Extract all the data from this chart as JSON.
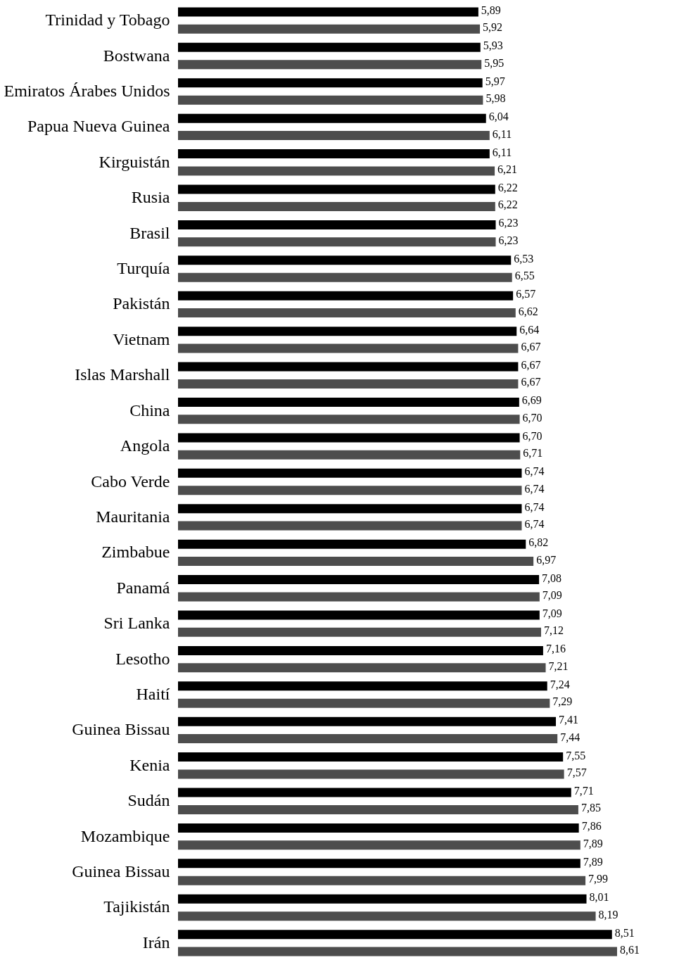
{
  "chart_data": {
    "type": "bar",
    "orientation": "horizontal",
    "categories": [
      "Trinidad y Tobago",
      "Bostwana",
      "Emiratos Árabes Unidos",
      "Papua Nueva Guinea",
      "Kirguistán",
      "Rusia",
      "Brasil",
      "Turquía",
      "Pakistán",
      "Vietnam",
      "Islas Marshall",
      "China",
      "Angola",
      "Cabo Verde",
      "Mauritania",
      "Zimbabue",
      "Panamá",
      "Sri Lanka",
      "Lesotho",
      "Haití",
      "Guinea Bissau",
      "Kenia",
      "Sudán",
      "Mozambique",
      "Guinea Bissau",
      "Tajikistán",
      "Irán"
    ],
    "series": [
      {
        "color": "#000000",
        "values": [
          5.89,
          5.93,
          5.97,
          6.04,
          6.11,
          6.22,
          6.23,
          6.53,
          6.57,
          6.64,
          6.67,
          6.69,
          6.7,
          6.74,
          6.74,
          6.82,
          7.08,
          7.09,
          7.16,
          7.24,
          7.41,
          7.55,
          7.71,
          7.86,
          7.89,
          8.01,
          8.51
        ],
        "value_labels": [
          "5,89",
          "5,93",
          "5,97",
          "6,04",
          "6,11",
          "6,22",
          "6,23",
          "6,53",
          "6,57",
          "6,64",
          "6,67",
          "6,69",
          "6,70",
          "6,74",
          "6,74",
          "6,82",
          "7,08",
          "7,09",
          "7,16",
          "7,24",
          "7,41",
          "7,55",
          "7,71",
          "7,86",
          "7,89",
          "8,01",
          "8,51"
        ]
      },
      {
        "color": "#4d4d4d",
        "values": [
          5.92,
          5.95,
          5.98,
          6.11,
          6.21,
          6.22,
          6.23,
          6.55,
          6.62,
          6.67,
          6.67,
          6.7,
          6.71,
          6.74,
          6.74,
          6.97,
          7.09,
          7.12,
          7.21,
          7.29,
          7.44,
          7.57,
          7.85,
          7.89,
          7.99,
          8.19,
          8.61
        ],
        "value_labels": [
          "5,92",
          "5,95",
          "5,98",
          "6,11",
          "6,21",
          "6,22",
          "6,23",
          "6,55",
          "6,62",
          "6,67",
          "6,67",
          "6,70",
          "6,71",
          "6,74",
          "6,74",
          "6,97",
          "7,09",
          "7,12",
          "7,21",
          "7,29",
          "7,44",
          "7,57",
          "7,85",
          "7,89",
          "7,99",
          "8,19",
          "8,61"
        ]
      }
    ],
    "tick_labels": "y",
    "grid": false,
    "legend": false
  }
}
